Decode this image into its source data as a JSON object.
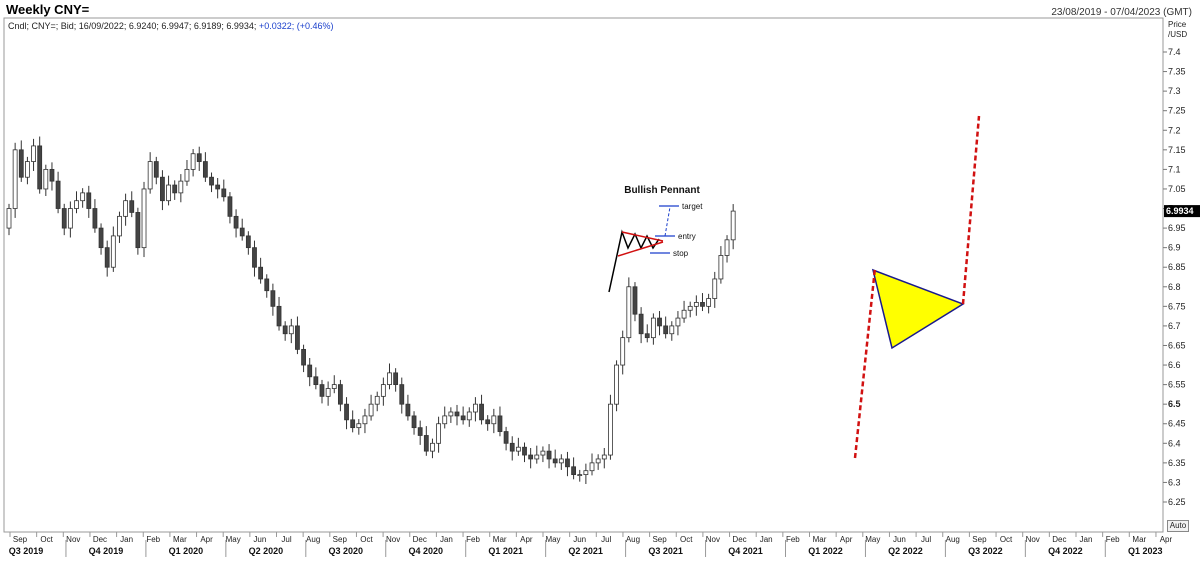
{
  "header": {
    "title": "Weekly CNY=",
    "date_range": "23/08/2019 - 07/04/2023 (GMT)",
    "info_prefix": "Cndl; CNY=; Bid; 16/09/2022; 6.9240; 6.9947; 6.9189; 6.9934;",
    "info_change": "+0.0322; (+0.46%)"
  },
  "auto_label": "Auto",
  "chart_data": {
    "type": "candlestick",
    "title": "Weekly CNY=",
    "ylabel": "Price /USD",
    "ylim": [
      6.225,
      7.475
    ],
    "y_ticks": [
      "7.4",
      "7.35",
      "7.3",
      "7.25",
      "7.2",
      "7.15",
      "7.1",
      "7.05",
      "7",
      "6.95",
      "6.9",
      "6.85",
      "6.8",
      "6.75",
      "6.7",
      "6.65",
      "6.6",
      "6.55",
      "6.5",
      "6.45",
      "6.4",
      "6.35",
      "6.3",
      "6.25"
    ],
    "last_price": "6.9934",
    "x_months": [
      "Sep",
      "Oct",
      "Nov",
      "Dec",
      "Jan",
      "Feb",
      "Mar",
      "Apr",
      "May",
      "Jun",
      "Jul",
      "Aug",
      "Sep",
      "Oct",
      "Nov",
      "Dec",
      "Jan",
      "Feb",
      "Mar",
      "Apr",
      "May",
      "Jun",
      "Jul",
      "Aug",
      "Sep",
      "Oct",
      "Nov",
      "Dec",
      "Jan",
      "Feb",
      "Mar",
      "Apr",
      "May",
      "Jun",
      "Jul",
      "Aug",
      "Sep",
      "Oct",
      "Nov",
      "Dec",
      "Jan",
      "Feb",
      "Mar",
      "Apr"
    ],
    "x_quarters": [
      "Q3 2019",
      "Q4 2019",
      "Q1 2020",
      "Q2 2020",
      "Q3 2020",
      "Q4 2020",
      "Q1 2021",
      "Q2 2021",
      "Q3 2021",
      "Q4 2021",
      "Q1 2022",
      "Q2 2022",
      "Q3 2022",
      "Q4 2022",
      "Q1 2023"
    ],
    "closes": [
      7.0,
      7.15,
      7.08,
      7.12,
      7.16,
      7.05,
      7.1,
      7.07,
      7.0,
      6.95,
      7.0,
      7.02,
      7.04,
      7.0,
      6.95,
      6.9,
      6.85,
      6.93,
      6.98,
      7.02,
      6.99,
      6.9,
      7.05,
      7.12,
      7.08,
      7.02,
      7.06,
      7.04,
      7.07,
      7.1,
      7.14,
      7.12,
      7.08,
      7.06,
      7.05,
      7.03,
      6.98,
      6.95,
      6.93,
      6.9,
      6.85,
      6.82,
      6.79,
      6.75,
      6.7,
      6.68,
      6.7,
      6.64,
      6.6,
      6.57,
      6.55,
      6.52,
      6.54,
      6.55,
      6.5,
      6.46,
      6.44,
      6.45,
      6.47,
      6.5,
      6.52,
      6.55,
      6.58,
      6.55,
      6.5,
      6.47,
      6.44,
      6.42,
      6.38,
      6.4,
      6.45,
      6.47,
      6.48,
      6.47,
      6.46,
      6.48,
      6.5,
      6.46,
      6.45,
      6.47,
      6.43,
      6.4,
      6.38,
      6.39,
      6.37,
      6.36,
      6.37,
      6.38,
      6.36,
      6.35,
      6.36,
      6.34,
      6.32,
      6.32,
      6.33,
      6.35,
      6.36,
      6.37,
      6.5,
      6.6,
      6.67,
      6.8,
      6.73,
      6.68,
      6.67,
      6.72,
      6.7,
      6.68,
      6.7,
      6.72,
      6.74,
      6.75,
      6.76,
      6.75,
      6.77,
      6.82,
      6.88,
      6.92,
      6.9934
    ],
    "pennant": {
      "flagpole_dash_color": "#d11111",
      "fill_color": "#ffff00",
      "outline_color": "#1a1a8c"
    },
    "legend": {
      "title": "Bullish Pennant",
      "target_label": "target",
      "entry_label": "entry",
      "stop_label": "stop"
    }
  }
}
